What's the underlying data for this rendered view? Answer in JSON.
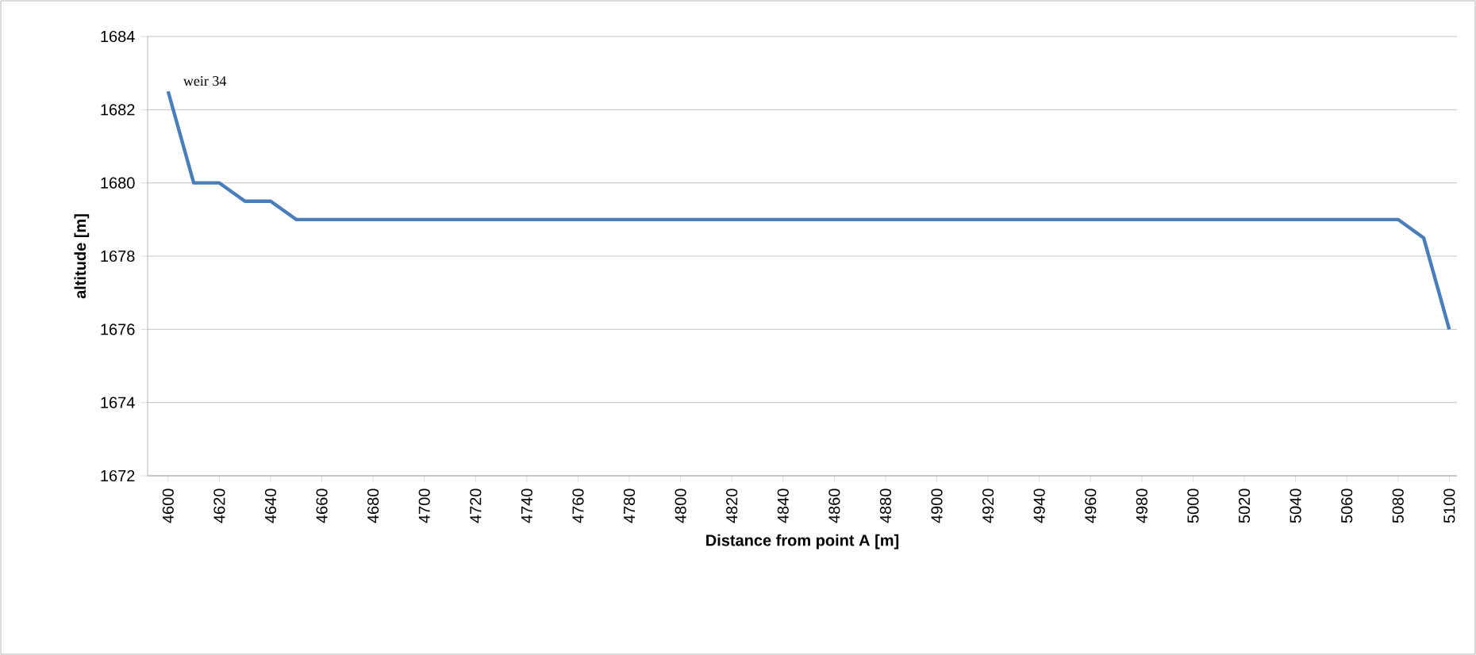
{
  "chart_data": {
    "type": "line",
    "xlabel": "Distance from point A [m]",
    "ylabel": "altitude [m]",
    "x": [
      4600,
      4610,
      4620,
      4630,
      4640,
      4650,
      4660,
      4670,
      4680,
      4690,
      4700,
      4710,
      4720,
      4730,
      4740,
      4750,
      4760,
      4770,
      4780,
      4790,
      4800,
      4810,
      4820,
      4830,
      4840,
      4850,
      4860,
      4870,
      4880,
      4890,
      4900,
      4910,
      4920,
      4930,
      4940,
      4950,
      4960,
      4970,
      4980,
      4990,
      5000,
      5010,
      5020,
      5030,
      5040,
      5050,
      5060,
      5070,
      5080,
      5090,
      5100
    ],
    "series": [
      {
        "color": "#4a7ebb",
        "values": [
          1682.5,
          1680,
          1680,
          1679.5,
          1679.5,
          1679,
          1679,
          1679,
          1679,
          1679,
          1679,
          1679,
          1679,
          1679,
          1679,
          1679,
          1679,
          1679,
          1679,
          1679,
          1679,
          1679,
          1679,
          1679,
          1679,
          1679,
          1679,
          1679,
          1679,
          1679,
          1679,
          1679,
          1679,
          1679,
          1679,
          1679,
          1679,
          1679,
          1679,
          1679,
          1679,
          1679,
          1679,
          1679,
          1679,
          1679,
          1679,
          1679,
          1679,
          1678.5,
          1676
        ]
      }
    ],
    "xlim": [
      4592,
      5103
    ],
    "ylim": [
      1672,
      1684
    ],
    "xticks": [
      4600,
      4620,
      4640,
      4660,
      4680,
      4700,
      4720,
      4740,
      4760,
      4780,
      4800,
      4820,
      4840,
      4860,
      4880,
      4900,
      4920,
      4940,
      4960,
      4980,
      5000,
      5020,
      5040,
      5060,
      5080,
      5100
    ],
    "yticks": [
      1672,
      1674,
      1676,
      1678,
      1680,
      1682,
      1684
    ],
    "grid": "y",
    "legend": false,
    "marker": "none",
    "line_style": "solid",
    "annotations": [
      {
        "text": "weir 34",
        "x": 4600,
        "y": 1682.5
      }
    ]
  }
}
